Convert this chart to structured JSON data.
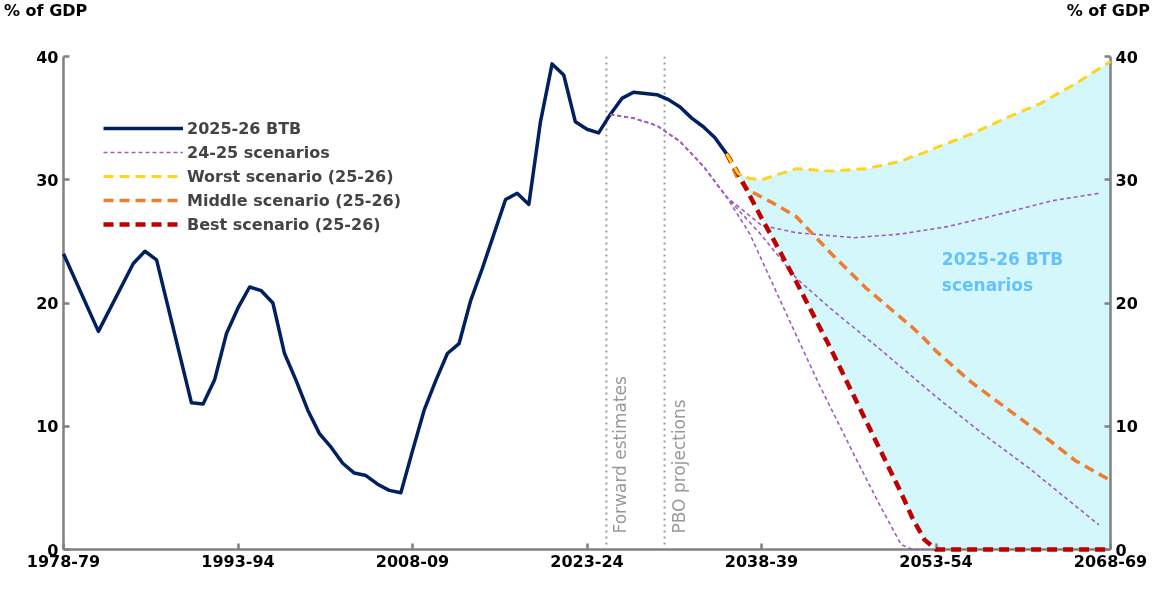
{
  "chart_data": {
    "type": "line",
    "ylabel": "% of GDP",
    "y2label": "% of GDP",
    "xlim": [
      "1978",
      "2068"
    ],
    "xticks": [
      {
        "value": "1978",
        "label": "1978-79"
      },
      {
        "value": "1993",
        "label": "1993-94"
      },
      {
        "value": "2008",
        "label": "2008-09"
      },
      {
        "value": "2023",
        "label": "2023-24"
      },
      {
        "value": "2038",
        "label": "2038-39"
      },
      {
        "value": "2053",
        "label": "2053-54"
      },
      {
        "value": "2068",
        "label": "2068-69"
      }
    ],
    "ylim": [
      0,
      40
    ],
    "yticks": [
      0,
      10,
      20,
      30,
      40
    ],
    "y2lim": [
      0,
      40
    ],
    "y2ticks": [
      0,
      10,
      20,
      30,
      40
    ],
    "grid": false,
    "legend": "top left",
    "series": [
      {
        "name": "2025-26 BTB",
        "color": "#002060",
        "line_style": "solid",
        "x": [
          "1978",
          "1981",
          "1984",
          "1985",
          "1986",
          "1989",
          "1990",
          "1991",
          "1992",
          "1993",
          "1994",
          "1995",
          "1996",
          "1997",
          "1998",
          "1999",
          "2000",
          "2001",
          "2002",
          "2003",
          "2004",
          "2005",
          "2006",
          "2007",
          "2008",
          "2009",
          "2010",
          "2011",
          "2012",
          "2013",
          "2014",
          "2015",
          "2016",
          "2017",
          "2018",
          "2019",
          "2020",
          "2021",
          "2022",
          "2023",
          "2024",
          "2025",
          "2026",
          "2027",
          "2028",
          "2029",
          "2030",
          "2031",
          "2032",
          "2033",
          "2034",
          "2035"
        ],
        "values": [
          24.0,
          17.7,
          23.2,
          24.2,
          23.5,
          11.9,
          11.8,
          13.8,
          17.5,
          19.6,
          21.3,
          21.0,
          20.0,
          15.9,
          13.7,
          11.3,
          9.4,
          8.3,
          7.0,
          6.2,
          6.0,
          5.3,
          4.8,
          4.6,
          8.0,
          11.3,
          13.7,
          15.9,
          16.7,
          20.2,
          22.8,
          25.6,
          28.4,
          28.9,
          28.0,
          34.7,
          39.4,
          38.5,
          34.7,
          34.1,
          33.8,
          35.3,
          36.6,
          37.1,
          37.0,
          36.9,
          36.5,
          35.9,
          35.0,
          34.3,
          33.4,
          32.1
        ]
      },
      {
        "name": "24-25 scenarios",
        "color": "#a05cbf",
        "line_style": "dashed",
        "x": [
          "2025",
          "2027",
          "2029",
          "2031",
          "2033",
          "2035",
          "2038",
          "2041",
          "2046",
          "2050",
          "2054",
          "2058",
          "2063",
          "2067"
        ],
        "values": [
          35.3,
          35.0,
          34.4,
          33.1,
          31.1,
          28.6,
          26.3,
          25.7,
          25.3,
          25.6,
          26.2,
          27.1,
          28.3,
          28.9
        ]
      },
      {
        "color": "#a05cbf",
        "line_style": "dashed",
        "x": [
          "2025",
          "2027",
          "2029",
          "2031",
          "2033",
          "2035",
          "2038",
          "2041",
          "2044",
          "2048",
          "2053",
          "2057",
          "2061",
          "2067"
        ],
        "values": [
          35.3,
          35.0,
          34.4,
          33.1,
          31.1,
          28.6,
          25.5,
          22.0,
          19.5,
          16.4,
          12.4,
          9.4,
          6.6,
          2.0
        ]
      },
      {
        "color": "#a05cbf",
        "line_style": "dashed",
        "x": [
          "2025",
          "2027",
          "2029",
          "2031",
          "2033",
          "2035",
          "2037",
          "2040",
          "2043",
          "2046",
          "2048",
          "2050",
          "2051",
          "2052"
        ],
        "values": [
          35.3,
          35.0,
          34.4,
          33.1,
          31.1,
          28.6,
          25.6,
          19.4,
          13.3,
          7.6,
          3.9,
          0.4,
          0,
          0
        ]
      },
      {
        "name": "Worst scenario (25-26)",
        "color": "#ffd320",
        "line_style": "dashed",
        "x": [
          "2035",
          "2036",
          "2037",
          "2038",
          "2039",
          "2041",
          "2044",
          "2047",
          "2050",
          "2051",
          "2052",
          "2053",
          "2056",
          "2059",
          "2062",
          "2065",
          "2068"
        ],
        "values": [
          32.1,
          30.5,
          30.1,
          30.0,
          30.3,
          30.9,
          30.7,
          30.9,
          31.5,
          31.9,
          32.2,
          32.6,
          33.7,
          35.0,
          36.2,
          37.8,
          39.6
        ]
      },
      {
        "name": "Middle scenario (25-26)",
        "color": "#ed7d31",
        "line_style": "dashed",
        "x": [
          "2035",
          "2036",
          "2037",
          "2038",
          "2039",
          "2041",
          "2044",
          "2047",
          "2050",
          "2051",
          "2052",
          "2053",
          "2056",
          "2059",
          "2062",
          "2065",
          "2068"
        ],
        "values": [
          32.1,
          30.0,
          29.1,
          28.6,
          28.1,
          27.0,
          24.0,
          21.2,
          18.8,
          18.0,
          17.1,
          16.1,
          13.6,
          11.5,
          9.4,
          7.2,
          5.6
        ],
        "lower": [
          32.1,
          30.5,
          28.7,
          26.9,
          25.2,
          21.7,
          16.2,
          10.4,
          4.6,
          2.5,
          0.8,
          0,
          0,
          0,
          0,
          0,
          0
        ],
        "upper": [
          32.1,
          30.5,
          30.1,
          30.0,
          30.3,
          30.9,
          30.7,
          30.9,
          31.5,
          31.9,
          32.2,
          32.6,
          33.7,
          35.0,
          36.2,
          37.8,
          39.6
        ]
      },
      {
        "name": "Best scenario (25-26)",
        "color": "#c00000",
        "line_style": "dashed",
        "x": [
          "2035",
          "2036",
          "2037",
          "2038",
          "2039",
          "2041",
          "2044",
          "2047",
          "2050",
          "2051",
          "2052",
          "2053",
          "2056",
          "2059",
          "2062",
          "2065",
          "2068"
        ],
        "values": [
          32.1,
          30.5,
          28.7,
          26.9,
          25.2,
          21.7,
          16.2,
          10.4,
          4.6,
          2.5,
          0.8,
          0,
          0,
          0,
          0,
          0,
          0
        ]
      }
    ],
    "ref_lines": [
      {
        "axis": "x",
        "value": "2024-09",
        "label": "Forward estimates",
        "color": "#999999",
        "line_style": "dotted"
      },
      {
        "axis": "x",
        "value": "2029-09",
        "label": "PBO projections",
        "color": "#999999",
        "line_style": "dotted"
      }
    ],
    "annotations": [
      "2025-26 BTB scenarios"
    ]
  }
}
